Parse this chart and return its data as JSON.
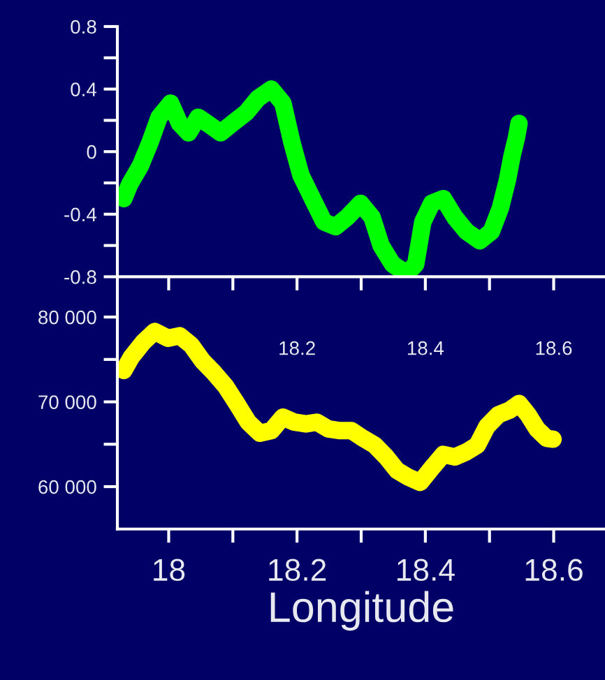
{
  "chart_data": [
    {
      "type": "line",
      "xlim": [
        17.92,
        18.68
      ],
      "ylim": [
        -0.8,
        0.8
      ],
      "xticks": [
        {
          "value": 18,
          "label": null
        },
        {
          "value": 18.1,
          "label": null
        },
        18.2,
        {
          "value": 18.3,
          "label": null
        },
        18.4,
        {
          "value": 18.5,
          "label": null
        },
        18.6
      ],
      "yticks": [
        -0.8,
        {
          "value": -0.6,
          "label": null
        },
        -0.4,
        {
          "value": -0.2,
          "label": null
        },
        0,
        {
          "value": 0.2,
          "label": null
        },
        0.4,
        {
          "value": 0.6,
          "label": null
        },
        0.8
      ],
      "series": [
        {
          "color": "#00ff00",
          "x": [
            17.93,
            17.939,
            17.956,
            17.971,
            17.985,
            18.003,
            18.017,
            18.031,
            18.046,
            18.064,
            18.081,
            18.099,
            18.121,
            18.139,
            18.16,
            18.178,
            18.192,
            18.206,
            18.224,
            18.242,
            18.26,
            18.278,
            18.299,
            18.317,
            18.331,
            18.349,
            18.371,
            18.385,
            18.396,
            18.41,
            18.428,
            18.446,
            18.464,
            18.485,
            18.503,
            18.517,
            18.528,
            18.535,
            18.542,
            18.546
          ],
          "values": [
            -0.3,
            -0.21,
            -0.09,
            0.06,
            0.22,
            0.31,
            0.18,
            0.12,
            0.22,
            0.17,
            0.12,
            0.18,
            0.25,
            0.34,
            0.4,
            0.31,
            0.06,
            -0.15,
            -0.3,
            -0.45,
            -0.48,
            -0.42,
            -0.33,
            -0.42,
            -0.6,
            -0.72,
            -0.78,
            -0.72,
            -0.45,
            -0.33,
            -0.3,
            -0.42,
            -0.51,
            -0.57,
            -0.51,
            -0.36,
            -0.18,
            -0.03,
            0.09,
            0.18
          ]
        }
      ]
    },
    {
      "type": "line",
      "xlabel": "Longitude",
      "xlim": [
        17.92,
        18.68
      ],
      "ylim": [
        55000,
        84750
      ],
      "xticks": [
        18,
        {
          "value": 18.1,
          "label": null
        },
        18.2,
        {
          "value": 18.3,
          "label": null
        },
        18.4,
        {
          "value": 18.5,
          "label": null
        },
        18.6
      ],
      "yticks": [
        {
          "value": 60000,
          "label": "60 000"
        },
        {
          "value": 65000,
          "label": null
        },
        {
          "value": 70000,
          "label": "70 000"
        },
        {
          "value": 75000,
          "label": null
        },
        {
          "value": 80000,
          "label": "80 000"
        }
      ],
      "series": [
        {
          "color": "#ffff00",
          "x": [
            17.93,
            17.942,
            17.96,
            17.978,
            17.999,
            18.017,
            18.035,
            18.053,
            18.071,
            18.089,
            18.106,
            18.124,
            18.142,
            18.16,
            18.178,
            18.196,
            18.214,
            18.231,
            18.249,
            18.267,
            18.285,
            18.303,
            18.321,
            18.339,
            18.356,
            18.374,
            18.392,
            18.41,
            18.428,
            18.446,
            18.464,
            18.481,
            18.496,
            18.514,
            18.531,
            18.546,
            18.56,
            18.574,
            18.589,
            18.599
          ],
          "values": [
            73700,
            75300,
            77000,
            78300,
            77500,
            77800,
            76700,
            74800,
            73400,
            71800,
            69800,
            67600,
            66300,
            66600,
            68200,
            67600,
            67400,
            67600,
            66800,
            66600,
            66600,
            65700,
            64900,
            63500,
            61900,
            61100,
            60500,
            62200,
            63800,
            63500,
            64100,
            64900,
            67100,
            68500,
            69000,
            69800,
            68500,
            66800,
            65700,
            65600
          ]
        }
      ]
    }
  ]
}
